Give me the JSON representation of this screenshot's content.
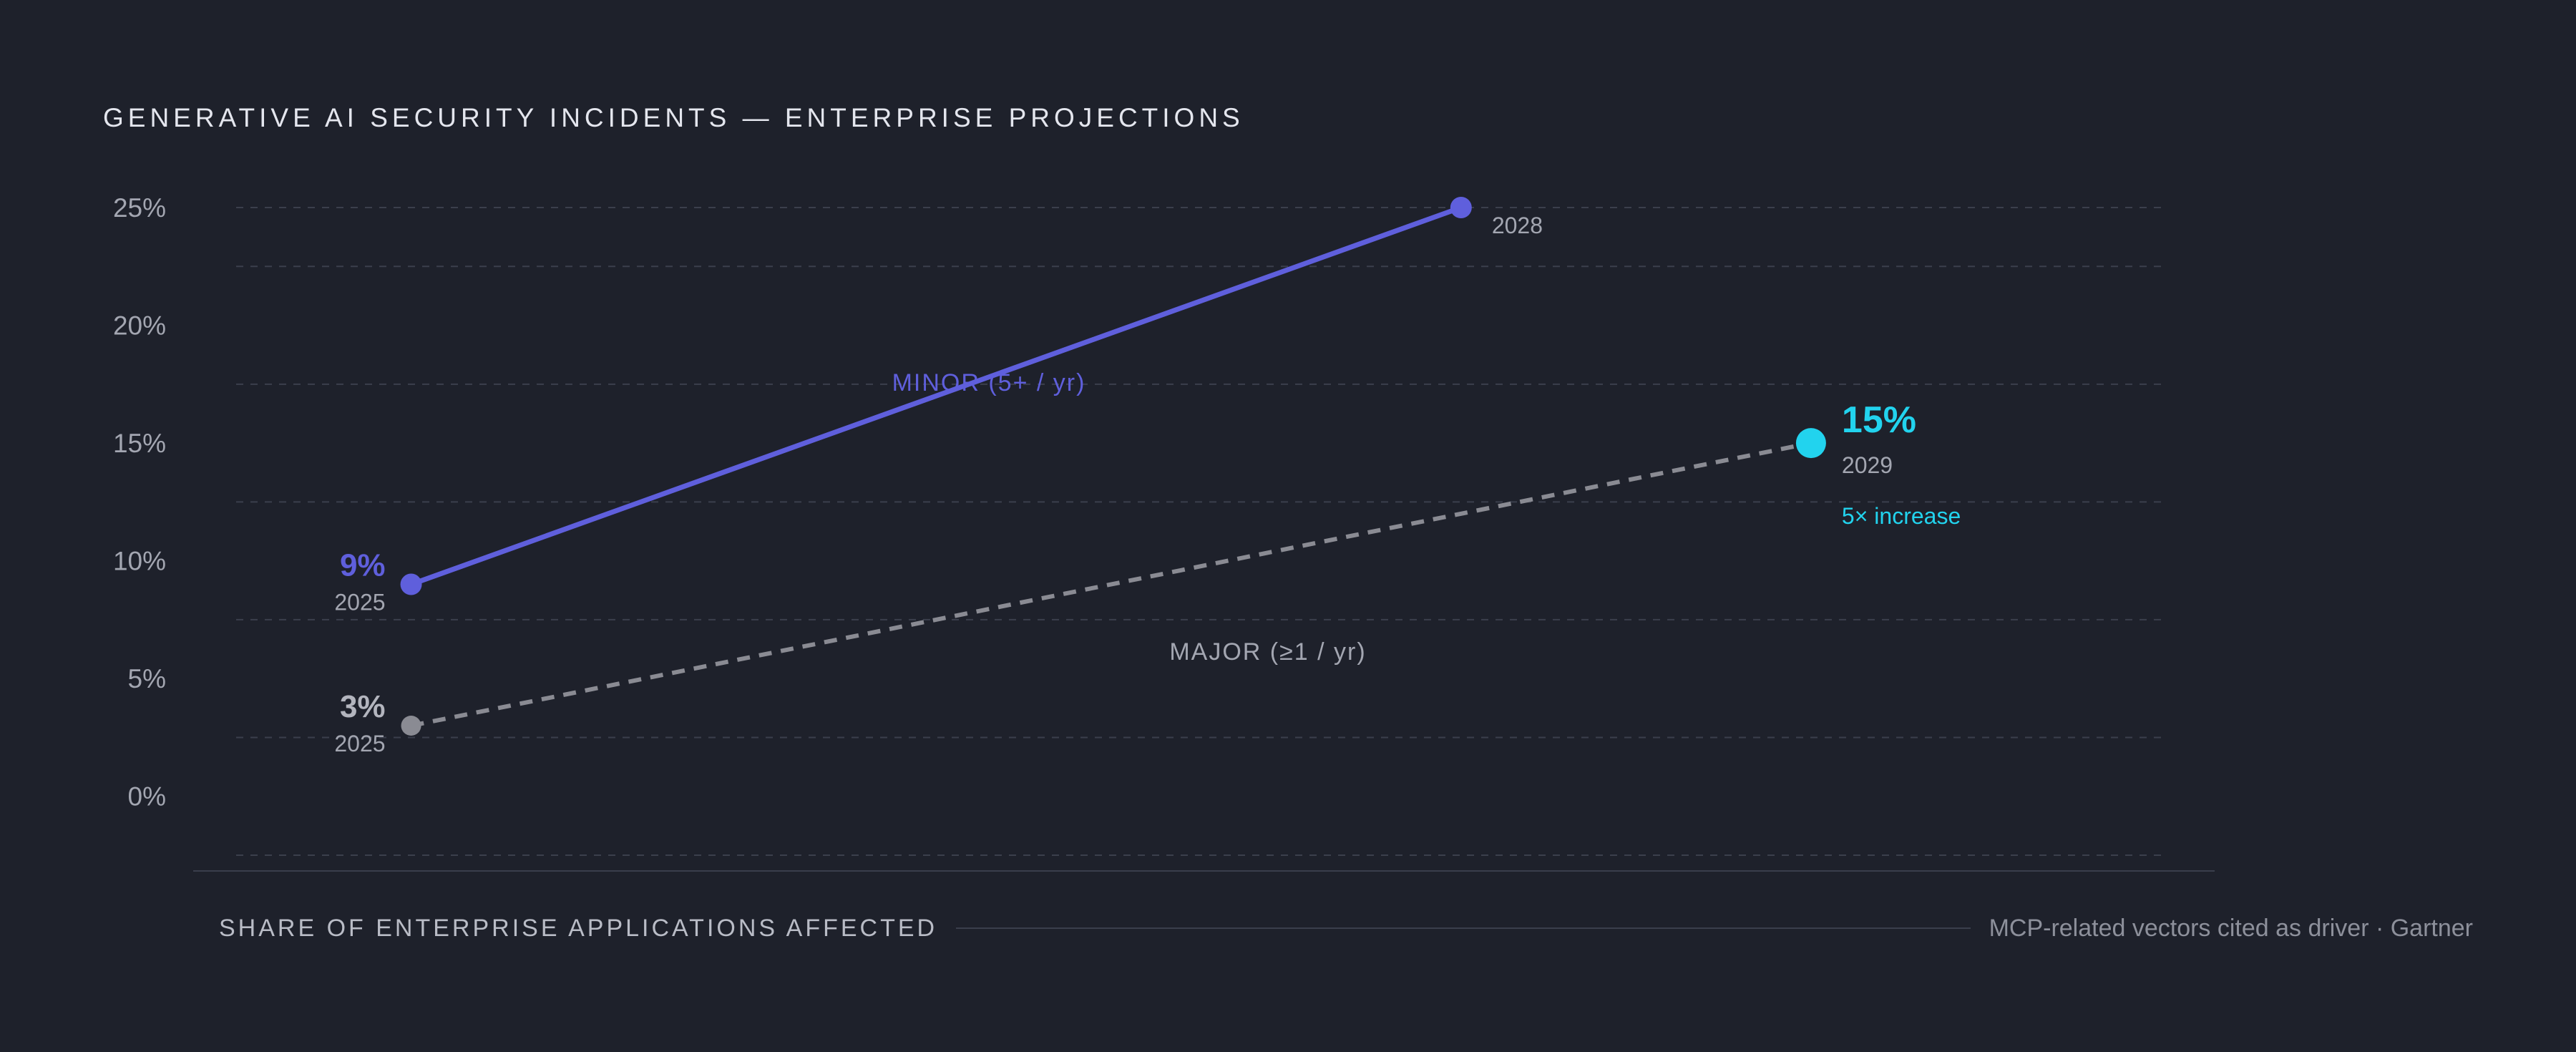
{
  "title": "GENERATIVE AI SECURITY INCIDENTS — ENTERPRISE PROJECTIONS",
  "footer": {
    "left": "SHARE OF ENTERPRISE APPLICATIONS AFFECTED",
    "right": "MCP-related vectors cited as driver · Gartner"
  },
  "colors": {
    "background": "#1e212b",
    "minor": "#5f5fdc",
    "major": "#8a8b93",
    "highlight": "#22d3ee",
    "axis_text": "#a3a6b1",
    "grid": "#3b3f4c"
  },
  "chart_data": {
    "type": "line",
    "title": "GENERATIVE AI SECURITY INCIDENTS — ENTERPRISE PROJECTIONS",
    "xlabel": "",
    "ylabel": "",
    "y_ticks": [
      "0%",
      "5%",
      "10%",
      "15%",
      "20%",
      "25%"
    ],
    "y_tick_values": [
      0,
      5,
      10,
      15,
      20,
      25
    ],
    "ylim": [
      -2.5,
      25
    ],
    "xlim": [
      2024.5,
      2030
    ],
    "grid": true,
    "series": [
      {
        "name": "MINOR (5+ / yr)",
        "style": "solid",
        "x": [
          2025,
          2028
        ],
        "y": [
          9,
          25
        ],
        "point_labels": [
          {
            "value": "9%",
            "year": "2025"
          },
          {
            "value": "",
            "year": "2028"
          }
        ]
      },
      {
        "name": "MAJOR (≥1 / yr)",
        "style": "dashed",
        "x": [
          2025,
          2029
        ],
        "y": [
          3,
          15
        ],
        "point_labels": [
          {
            "value": "3%",
            "year": "2025"
          },
          {
            "value": "15%",
            "year": "2029",
            "note": "5× increase"
          }
        ]
      }
    ]
  }
}
